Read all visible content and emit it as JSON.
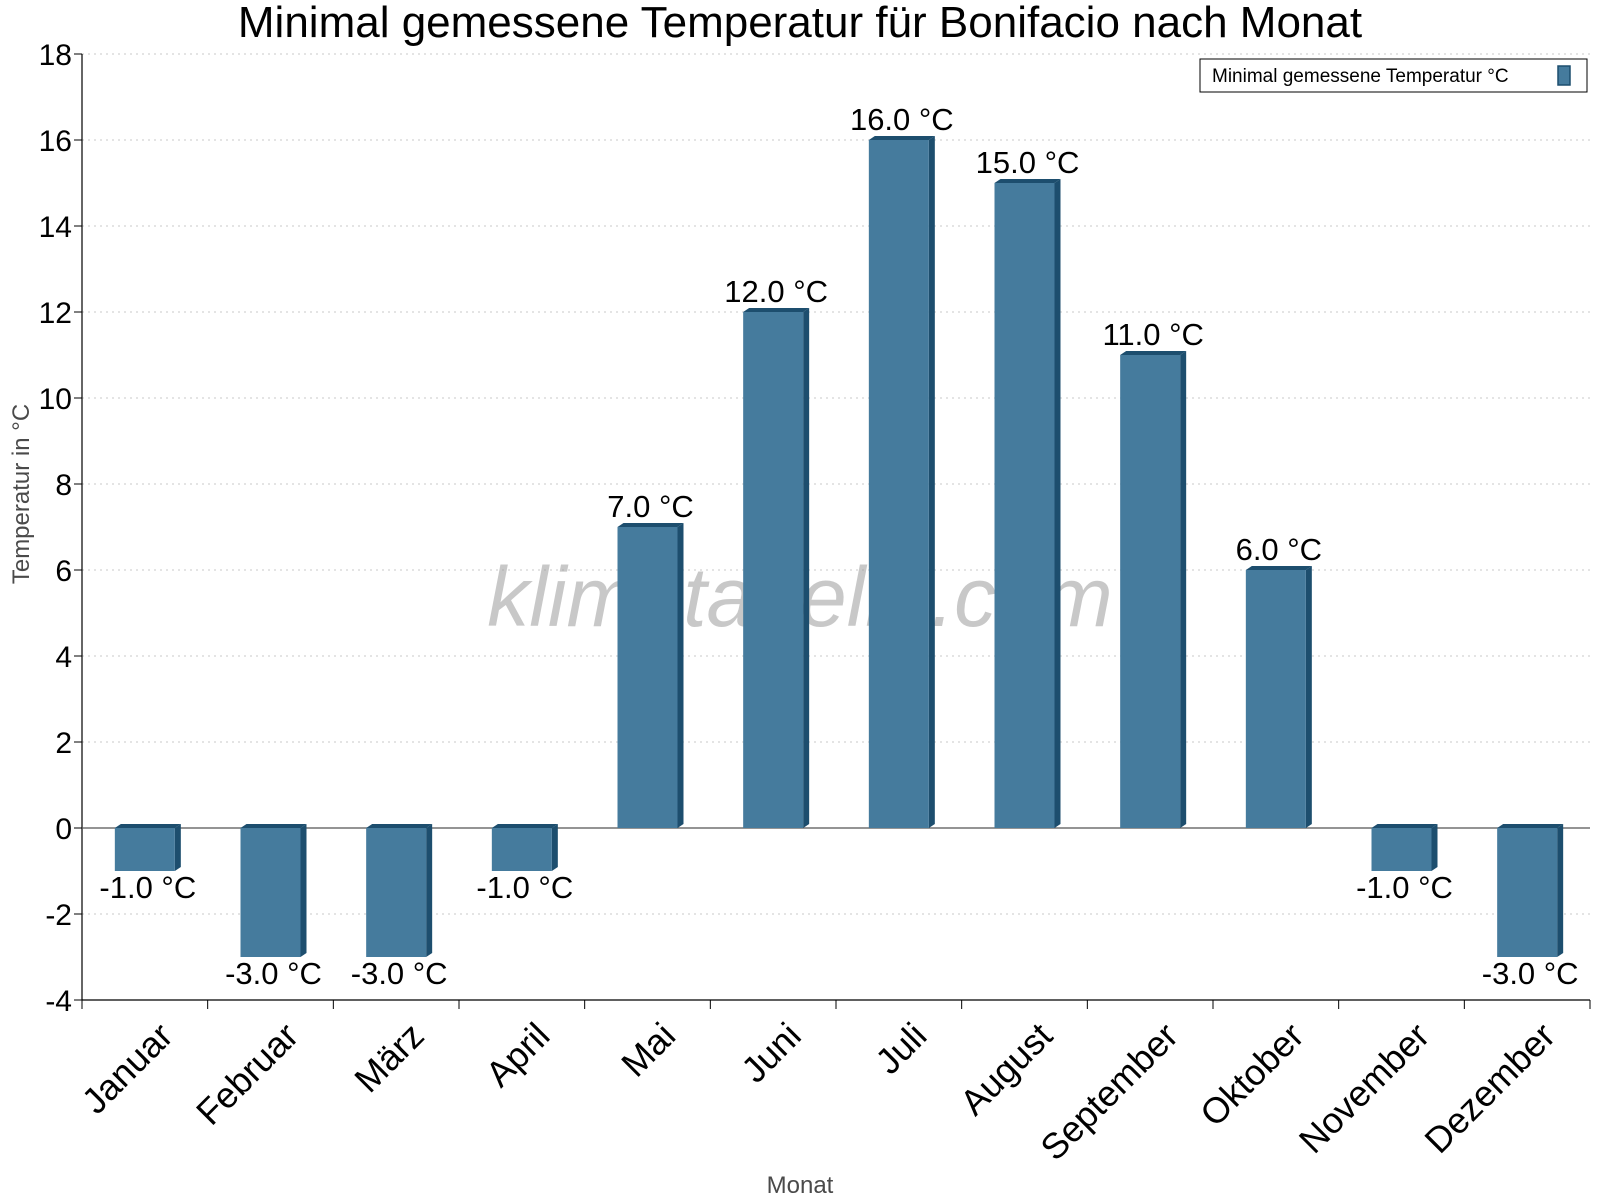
{
  "chart_data": {
    "type": "bar",
    "title": "Minimal gemessene Temperatur für Bonifacio nach Monat",
    "xlabel": "Monat",
    "ylabel": "Temperatur in °C",
    "categories": [
      "Januar",
      "Februar",
      "März",
      "April",
      "Mai",
      "Juni",
      "Juli",
      "August",
      "September",
      "Oktober",
      "November",
      "Dezember"
    ],
    "series": [
      {
        "name": "Minimal gemessene Temperatur °C",
        "values": [
          -1.0,
          -3.0,
          -3.0,
          -1.0,
          7.0,
          12.0,
          16.0,
          15.0,
          11.0,
          6.0,
          -1.0,
          -3.0
        ],
        "labels": [
          "-1.0 °C",
          "-3.0 °C",
          "-3.0 °C",
          "-1.0 °C",
          "7.0 °C",
          "12.0 °C",
          "16.0 °C",
          "15.0 °C",
          "11.0 °C",
          "6.0 °C",
          "-1.0 °C",
          "-3.0 °C"
        ]
      }
    ],
    "ylim": [
      -4,
      18
    ],
    "yticks": [
      "-4",
      "-2",
      "0",
      "2",
      "4",
      "6",
      "8",
      "10",
      "12",
      "14",
      "16",
      "18"
    ],
    "grid": true,
    "legend_position": "top-right",
    "watermark": "klimatabelle.com",
    "colors": {
      "bar": "#457b9d",
      "bar_dark": "#1d4e6e"
    }
  }
}
